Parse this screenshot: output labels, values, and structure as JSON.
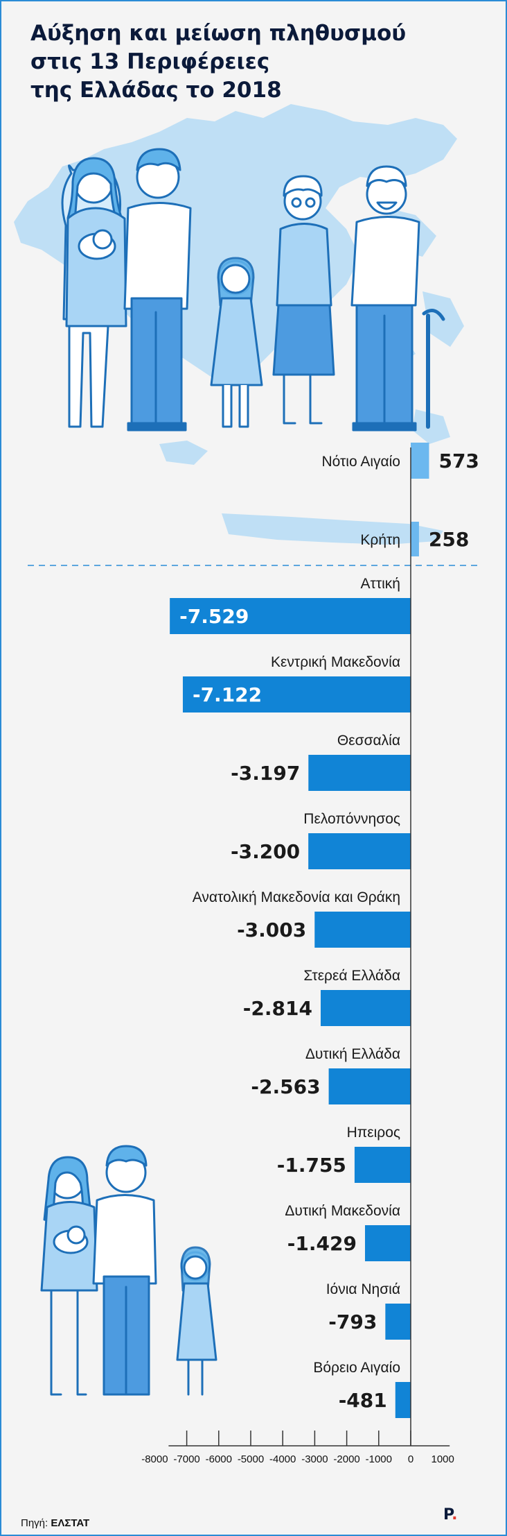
{
  "title": "Αύξηση και μείωση πληθυσμού\nστις 13 Περιφέρειες\nτης Ελλάδας το 2018",
  "source_label": "Πηγή:",
  "source_value": "ΕΛΣΤΑΤ",
  "logo_letter": "P",
  "logo_dot": ".",
  "colors": {
    "positive_bar": "#6cb8ef",
    "negative_bar": "#1184d6",
    "accent": "#2a8bd6",
    "title_text": "#0b1a3a"
  },
  "chart_data": {
    "type": "bar",
    "orientation": "horizontal",
    "categories": [
      "Νότιο Αιγαίο",
      "Κρήτη",
      "Αττική",
      "Κεντρική Μακεδονία",
      "Θεσσαλία",
      "Πελοπόννησος",
      "Ανατολική Μακεδονία και Θράκη",
      "Στερεά Ελλάδα",
      "Δυτική Ελλάδα",
      "Ηπειρος",
      "Δυτική Μακεδονία",
      "Ιόνια Νησιά",
      "Βόρειο Αιγαίο"
    ],
    "values": [
      573,
      258,
      -7529,
      -7122,
      -3197,
      -3200,
      -3003,
      -2814,
      -2563,
      -1755,
      -1429,
      -793,
      -481
    ],
    "value_labels": [
      "573",
      "258",
      "-7.529",
      "-7.122",
      "-3.197",
      "-3.200",
      "-3.003",
      "-2.814",
      "-2.563",
      "-1.755",
      "-1.429",
      "-793",
      "-481"
    ],
    "xlim": [
      -8000,
      1000
    ],
    "x_ticks": [
      -8000,
      -7000,
      -6000,
      -5000,
      -4000,
      -3000,
      -2000,
      -1000,
      0,
      1000
    ],
    "x_tick_labels": [
      "-8000",
      "-7000",
      "-6000",
      "-5000",
      "-4000",
      "-3000",
      "-2000",
      "-1000",
      "0",
      "1000"
    ],
    "grid": false
  }
}
